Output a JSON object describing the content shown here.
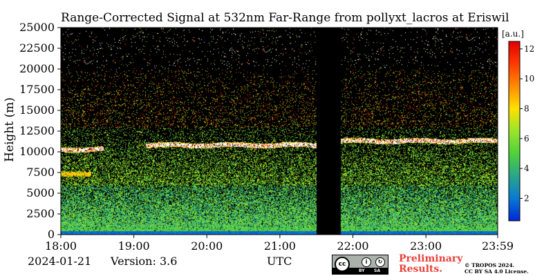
{
  "chart_data": {
    "type": "heatmap",
    "title": "Range-Corrected Signal at 532nm Far-Range from pollyxt_lacros at Eriswil",
    "xlabel": "UTC",
    "ylabel": "Height (m)",
    "x_ticks": [
      "18:00",
      "19:00",
      "20:00",
      "21:00",
      "22:00",
      "23:00",
      "23:59"
    ],
    "x_range": [
      "18:00",
      "23:59"
    ],
    "y_ticks": [
      0,
      2500,
      5000,
      7500,
      10000,
      12500,
      15000,
      17500,
      20000,
      22500,
      25000
    ],
    "y_range": [
      0,
      25000
    ],
    "colorbar": {
      "label": "[a.u.]",
      "ticks": [
        2,
        4,
        6,
        8,
        10,
        12
      ],
      "range": [
        0.5,
        12.5
      ],
      "colormap": [
        "#0026d9",
        "#0a7ad0",
        "#2aa58a",
        "#4fd13a",
        "#9ae52b",
        "#ffe000",
        "#ff8c00",
        "#ff3a00",
        "#e00000"
      ]
    },
    "no_data_gap": [
      "21:30",
      "21:50"
    ],
    "background": "#000000",
    "features": [
      {
        "kind": "cloud layer",
        "start": "18:00",
        "end": "18:35",
        "height": 10300
      },
      {
        "kind": "cloud layer",
        "start": "19:10",
        "end": "21:30",
        "height": 10800
      },
      {
        "kind": "cloud layer",
        "start": "21:50",
        "end": "23:59",
        "height": 11300
      },
      {
        "kind": "low aerosol layer",
        "start": "18:00",
        "end": "18:25",
        "height": 7400
      },
      {
        "kind": "boundary layer",
        "start": "18:00",
        "end": "23:59",
        "height": 600
      }
    ]
  },
  "footer": {
    "date": "2024-01-21",
    "version": "Version: 3.6",
    "preliminary": [
      "Preliminary",
      "Results."
    ],
    "license": [
      "© TROPOS 2024.",
      "CC BY SA 4.0 License."
    ],
    "cc_badge": {
      "cc": "cc",
      "by": "BY",
      "sa": "SA"
    }
  }
}
